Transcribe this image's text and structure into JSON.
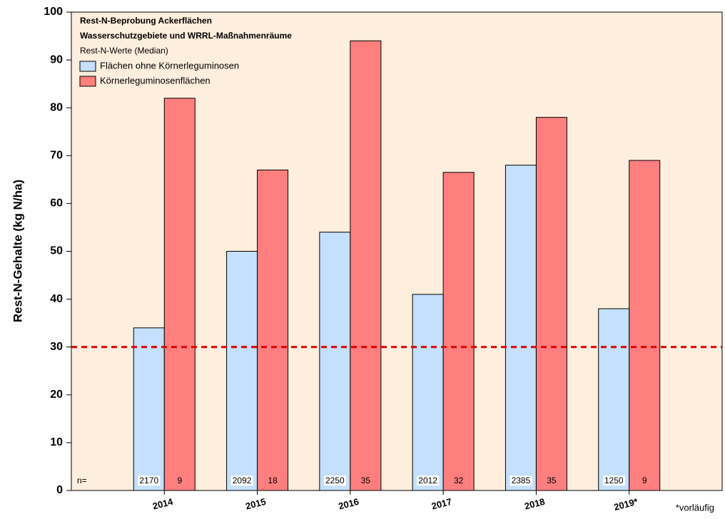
{
  "chart_data": {
    "type": "bar",
    "title": "Rest-N-Beprobung Ackerflächen",
    "subtitle": "Wasserschutzgebiete und WRRL-Maßnahmenräume",
    "legend_title": "Rest-N-Werte (Median)",
    "ylabel": "Rest-N-Gehalte (kg N/ha)",
    "categories": [
      "2014",
      "2015",
      "2016",
      "2017",
      "2018",
      "2019*"
    ],
    "series": [
      {
        "name": "Flächen ohne Körnerleguminosen",
        "color": "#c4e0fc",
        "values": [
          34,
          50,
          54,
          41,
          68,
          38
        ],
        "n": [
          2170,
          2092,
          2250,
          2012,
          2385,
          1250
        ]
      },
      {
        "name": "Körnerleguminosenflächen",
        "color": "#ff7f7f",
        "values": [
          82,
          67,
          94,
          66.5,
          78,
          69
        ],
        "n": [
          9,
          18,
          35,
          32,
          35,
          9
        ]
      }
    ],
    "n_label": "n=",
    "reference_line": {
      "value": 30,
      "color": "#e00000"
    },
    "footnote": "*vorläufig",
    "ylim": [
      0,
      100
    ],
    "yticks": [
      0,
      10,
      20,
      30,
      40,
      50,
      60,
      70,
      80,
      90,
      100
    ],
    "background": "#fdeedd",
    "legend": "upper left"
  }
}
